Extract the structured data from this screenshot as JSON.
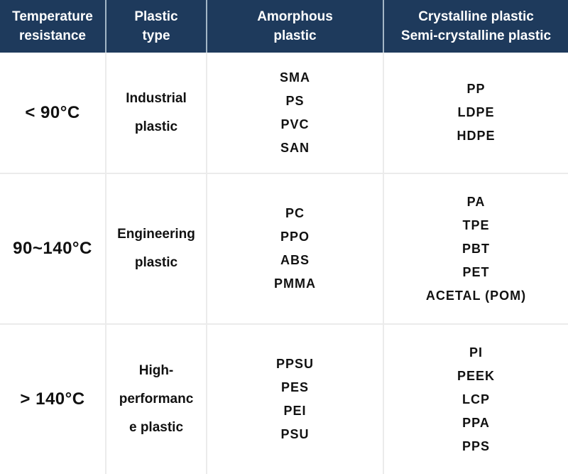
{
  "table": {
    "header": {
      "columns": [
        {
          "label": "Temperature resistance",
          "lines": [
            "Temperature",
            "resistance"
          ]
        },
        {
          "label": "Plastic type",
          "lines": [
            "Plastic",
            "type"
          ]
        },
        {
          "label": "Amorphous plastic",
          "lines": [
            "Amorphous",
            "plastic"
          ]
        },
        {
          "label": "Crystalline plastic / Semi-crystalline plastic",
          "lines": [
            "Crystalline plastic",
            "Semi-crystalline plastic"
          ]
        }
      ]
    },
    "rows": [
      {
        "temperature": "< 90°C",
        "plastic_type": "Industrial plastic",
        "plastic_type_lines": [
          "Industrial",
          "plastic"
        ],
        "amorphous": [
          "SMA",
          "PS",
          "PVC",
          "SAN"
        ],
        "crystalline": [
          "PP",
          "LDPE",
          "HDPE"
        ]
      },
      {
        "temperature": "90~140°C",
        "plastic_type": "Engineering plastic",
        "plastic_type_lines": [
          "Engineering",
          "plastic"
        ],
        "amorphous": [
          "PC",
          "PPO",
          "ABS",
          "PMMA"
        ],
        "crystalline": [
          "PA",
          "TPE",
          "PBT",
          "PET",
          "ACETAL (POM)"
        ]
      },
      {
        "temperature": "> 140°C",
        "plastic_type": "High-performance plastic",
        "plastic_type_lines": [
          "High-",
          "performanc",
          "e plastic"
        ],
        "amorphous": [
          "PPSU",
          "PES",
          "PEI",
          "PSU"
        ],
        "crystalline": [
          "PI",
          "PEEK",
          "LCP",
          "PPA",
          "PPS"
        ]
      }
    ],
    "colors": {
      "header_bg": "#1e3a5c",
      "header_text": "#ffffff",
      "header_divider": "#a3b6c6",
      "body_border": "#ebebeb",
      "body_text": "#111111"
    }
  },
  "chart_data": {
    "type": "table",
    "columns": [
      "Temperature resistance",
      "Plastic type",
      "Amorphous plastic",
      "Crystalline plastic Semi-crystalline plastic"
    ],
    "rows": [
      [
        "< 90°C",
        "Industrial plastic",
        [
          "SMA",
          "PS",
          "PVC",
          "SAN"
        ],
        [
          "PP",
          "LDPE",
          "HDPE"
        ]
      ],
      [
        "90~140°C",
        "Engineering plastic",
        [
          "PC",
          "PPO",
          "ABS",
          "PMMA"
        ],
        [
          "PA",
          "TPE",
          "PBT",
          "PET",
          "ACETAL (POM)"
        ]
      ],
      [
        "> 140°C",
        "High-performance plastic",
        [
          "PPSU",
          "PES",
          "PEI",
          "PSU"
        ],
        [
          "PI",
          "PEEK",
          "LCP",
          "PPA",
          "PPS"
        ]
      ]
    ]
  }
}
